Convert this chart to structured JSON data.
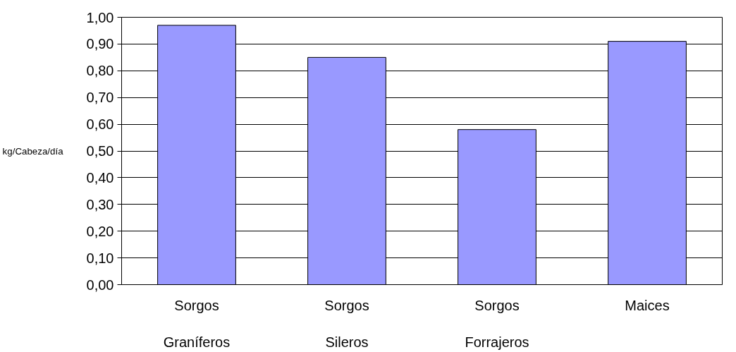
{
  "chart_data": {
    "type": "bar",
    "ylabel": "kg/Cabeza/día",
    "categories": [
      "Sorgos\n\nGraníferos",
      "Sorgos\n\nSileros",
      "Sorgos\n\nForrajeros",
      "Maices"
    ],
    "values": [
      0.97,
      0.85,
      0.58,
      0.91
    ],
    "color": "#9999ff",
    "ylim": [
      0,
      1
    ],
    "yticks": [
      {
        "value": 0,
        "label": "0,00"
      },
      {
        "value": 0.1,
        "label": "0,10"
      },
      {
        "value": 0.2,
        "label": "0,20"
      },
      {
        "value": 0.3,
        "label": "0,30"
      },
      {
        "value": 0.4,
        "label": "0,40"
      },
      {
        "value": 0.5,
        "label": "0,50"
      },
      {
        "value": 0.6,
        "label": "0,60"
      },
      {
        "value": 0.7,
        "label": "0,70"
      },
      {
        "value": 0.8,
        "label": "0,80"
      },
      {
        "value": 0.9,
        "label": "0,90"
      },
      {
        "value": 1,
        "label": "1,00"
      }
    ],
    "grid": "y"
  }
}
